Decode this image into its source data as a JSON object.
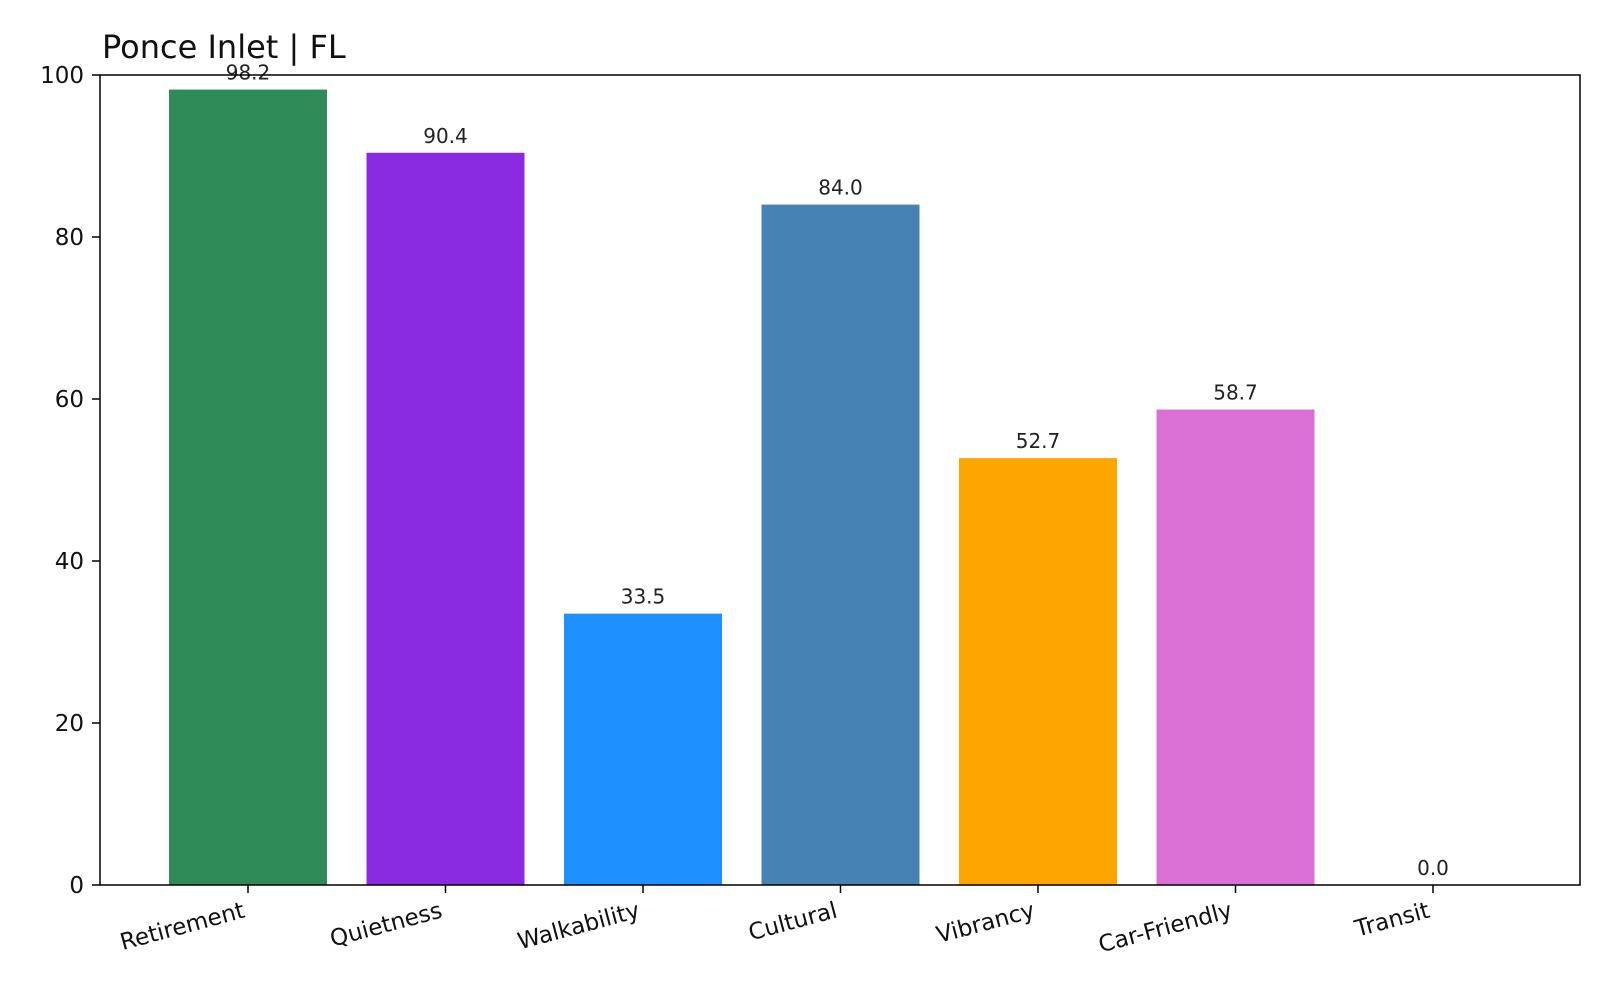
{
  "chart_data": {
    "type": "bar",
    "title": "Ponce Inlet | FL",
    "xlabel": "",
    "ylabel": "",
    "categories": [
      "Retirement",
      "Quietness",
      "Walkability",
      "Cultural",
      "Vibrancy",
      "Car-Friendly",
      "Transit"
    ],
    "values": [
      98.2,
      90.4,
      33.5,
      84.0,
      52.7,
      58.7,
      0.0
    ],
    "value_labels": [
      "98.2",
      "90.4",
      "33.5",
      "84.0",
      "52.7",
      "58.7",
      "0.0"
    ],
    "colors": [
      "#2e8b57",
      "#8a2be2",
      "#1e90ff",
      "#4682b4",
      "#ffa500",
      "#da70d6",
      "#808080"
    ],
    "ylim": [
      0,
      100
    ],
    "yticks": [
      0,
      20,
      40,
      60,
      80,
      100
    ],
    "ytick_labels": [
      "0",
      "20",
      "40",
      "60",
      "80",
      "100"
    ],
    "grid": false,
    "legend": "none"
  }
}
